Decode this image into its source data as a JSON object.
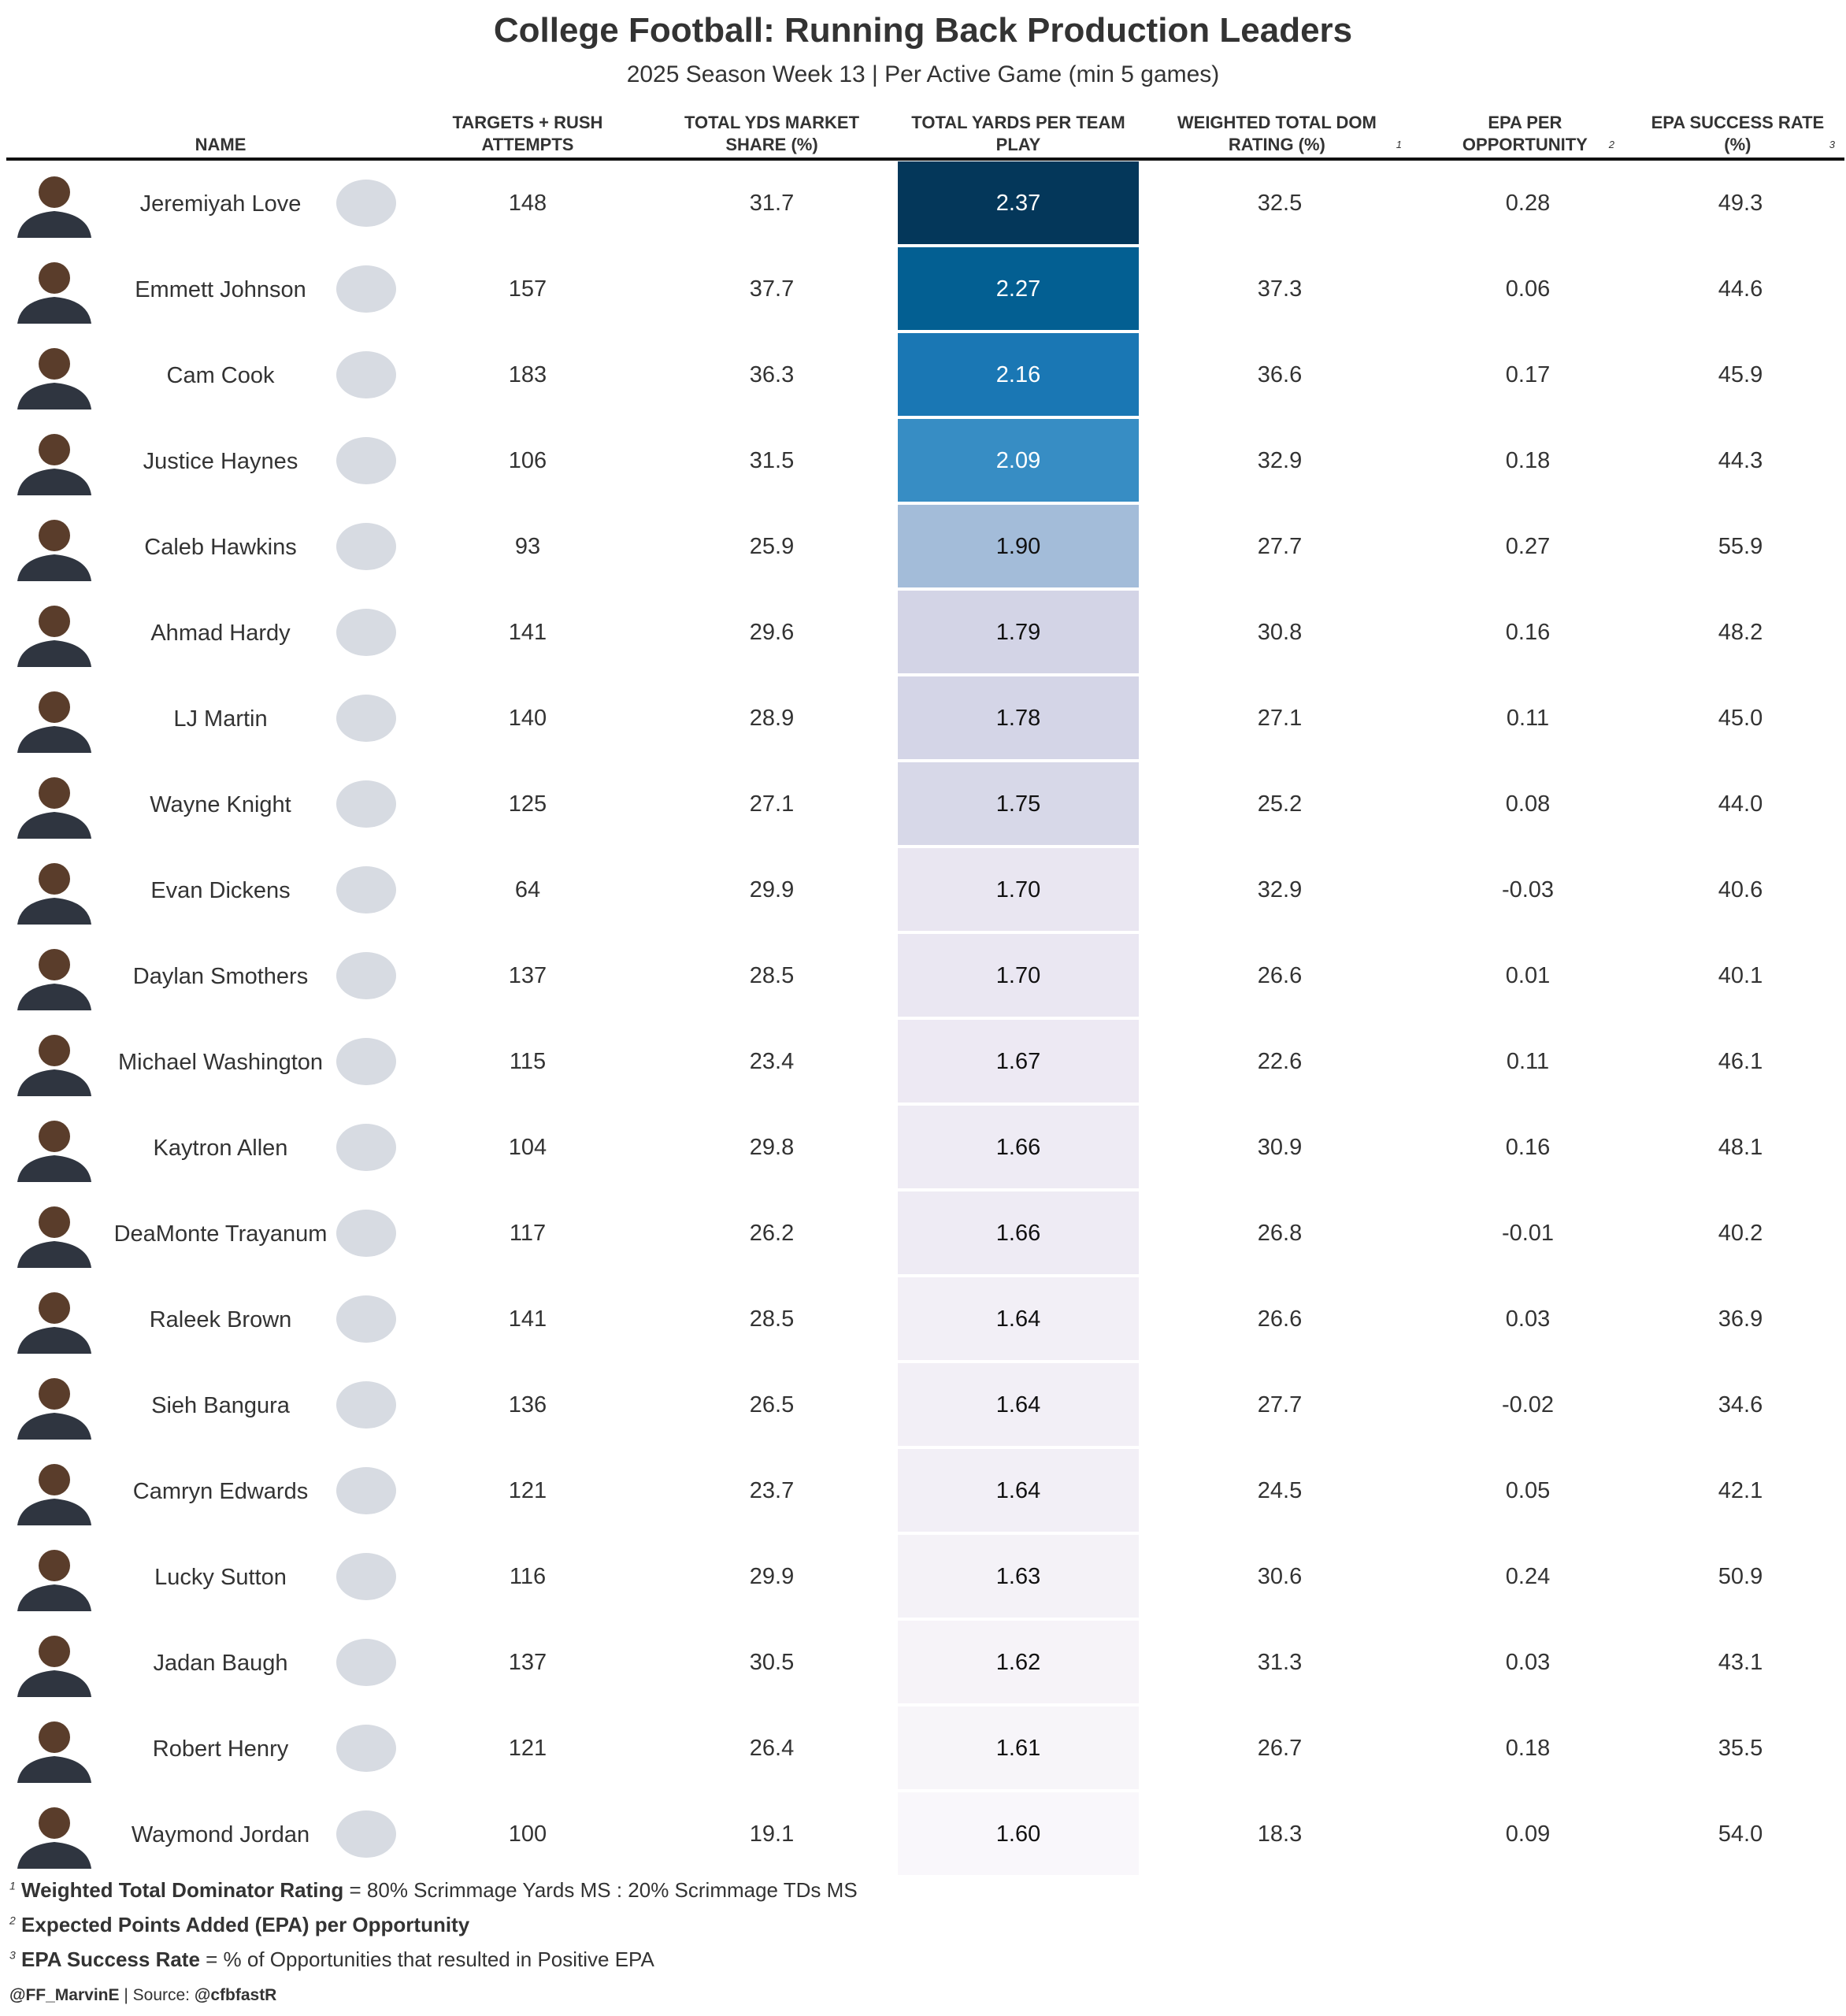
{
  "chart_data": {
    "type": "table",
    "title": "College Football: Running Back Production Leaders",
    "subtitle": "2025 Season Week 13 | Per Active Game (min 5 games)",
    "columns": [
      {
        "key": "name",
        "label": "NAME"
      },
      {
        "key": "attempts",
        "label": "TARGETS + RUSH ATTEMPTS"
      },
      {
        "key": "ms",
        "label": "TOTAL YDS MARKET SHARE (%)"
      },
      {
        "key": "ypp",
        "label": "TOTAL YARDS PER TEAM PLAY"
      },
      {
        "key": "dom",
        "label": "WEIGHTED TOTAL DOM RATING (%)",
        "note": "1"
      },
      {
        "key": "epa",
        "label": "EPA PER OPPORTUNITY",
        "note": "2"
      },
      {
        "key": "sr",
        "label": "EPA SUCCESS RATE (%)",
        "note": "3"
      }
    ],
    "rows": [
      {
        "name": "Jeremiyah Love",
        "logo": "notre-dame-logo",
        "attempts": "148",
        "ms": "31.7",
        "ypp": "2.37",
        "dom": "32.5",
        "epa": "0.28",
        "sr": "49.3"
      },
      {
        "name": "Emmett Johnson",
        "logo": "nebraska-logo",
        "attempts": "157",
        "ms": "37.7",
        "ypp": "2.27",
        "dom": "37.3",
        "epa": "0.06",
        "sr": "44.6"
      },
      {
        "name": "Cam Cook",
        "logo": "jackson-state-logo",
        "attempts": "183",
        "ms": "36.3",
        "ypp": "2.16",
        "dom": "36.6",
        "epa": "0.17",
        "sr": "45.9"
      },
      {
        "name": "Justice Haynes",
        "logo": "michigan-logo",
        "attempts": "106",
        "ms": "31.5",
        "ypp": "2.09",
        "dom": "32.9",
        "epa": "0.18",
        "sr": "44.3"
      },
      {
        "name": "Caleb Hawkins",
        "logo": "north-texas-logo",
        "attempts": "93",
        "ms": "25.9",
        "ypp": "1.90",
        "dom": "27.7",
        "epa": "0.27",
        "sr": "55.9"
      },
      {
        "name": "Ahmad Hardy",
        "logo": "missouri-logo",
        "attempts": "141",
        "ms": "29.6",
        "ypp": "1.79",
        "dom": "30.8",
        "epa": "0.16",
        "sr": "48.2"
      },
      {
        "name": "LJ Martin",
        "logo": "byu-logo",
        "attempts": "140",
        "ms": "28.9",
        "ypp": "1.78",
        "dom": "27.1",
        "epa": "0.11",
        "sr": "45.0"
      },
      {
        "name": "Wayne Knight",
        "logo": "jmu-logo",
        "attempts": "125",
        "ms": "27.1",
        "ypp": "1.75",
        "dom": "25.2",
        "epa": "0.08",
        "sr": "44.0"
      },
      {
        "name": "Evan Dickens",
        "logo": "liberty-logo",
        "attempts": "64",
        "ms": "29.9",
        "ypp": "1.70",
        "dom": "32.9",
        "epa": "-0.03",
        "sr": "40.6"
      },
      {
        "name": "Daylan Smothers",
        "logo": "nc-state-logo",
        "attempts": "137",
        "ms": "28.5",
        "ypp": "1.70",
        "dom": "26.6",
        "epa": "0.01",
        "sr": "40.1"
      },
      {
        "name": "Michael Washington",
        "logo": "arkansas-logo",
        "attempts": "115",
        "ms": "23.4",
        "ypp": "1.67",
        "dom": "22.6",
        "epa": "0.11",
        "sr": "46.1"
      },
      {
        "name": "Kaytron Allen",
        "logo": "penn-state-logo",
        "attempts": "104",
        "ms": "29.8",
        "ypp": "1.66",
        "dom": "30.9",
        "epa": "0.16",
        "sr": "48.1"
      },
      {
        "name": "DeaMonte Trayanum",
        "logo": "toledo-logo",
        "attempts": "117",
        "ms": "26.2",
        "ypp": "1.66",
        "dom": "26.8",
        "epa": "-0.01",
        "sr": "40.2"
      },
      {
        "name": "Raleek Brown",
        "logo": "arizona-state-logo",
        "attempts": "141",
        "ms": "28.5",
        "ypp": "1.64",
        "dom": "26.6",
        "epa": "0.03",
        "sr": "36.9"
      },
      {
        "name": "Sieh Bangura",
        "logo": "ohio-logo",
        "attempts": "136",
        "ms": "26.5",
        "ypp": "1.64",
        "dom": "27.7",
        "epa": "-0.02",
        "sr": "34.6"
      },
      {
        "name": "Camryn Edwards",
        "logo": "uconn-logo",
        "attempts": "121",
        "ms": "23.7",
        "ypp": "1.64",
        "dom": "24.5",
        "epa": "0.05",
        "sr": "42.1"
      },
      {
        "name": "Lucky Sutton",
        "logo": "san-diego-state-logo",
        "attempts": "116",
        "ms": "29.9",
        "ypp": "1.63",
        "dom": "30.6",
        "epa": "0.24",
        "sr": "50.9"
      },
      {
        "name": "Jadan Baugh",
        "logo": "florida-logo",
        "attempts": "137",
        "ms": "30.5",
        "ypp": "1.62",
        "dom": "31.3",
        "epa": "0.03",
        "sr": "43.1"
      },
      {
        "name": "Robert Henry",
        "logo": "utsa-logo",
        "attempts": "121",
        "ms": "26.4",
        "ypp": "1.61",
        "dom": "26.7",
        "epa": "0.18",
        "sr": "35.5"
      },
      {
        "name": "Waymond Jordan",
        "logo": "usc-logo",
        "attempts": "100",
        "ms": "19.1",
        "ypp": "1.60",
        "dom": "18.3",
        "epa": "0.09",
        "sr": "54.0"
      }
    ],
    "highlight_colors": [
      "#04375a",
      "#035f92",
      "#1a77b4",
      "#378dc4",
      "#a3bcd9",
      "#d3d4e6",
      "#d4d5e7",
      "#d7d8e8",
      "#e9e6f1",
      "#eae7f2",
      "#ede9f3",
      "#eeebf4",
      "#eeebf4",
      "#f2eff6",
      "#f2eff6",
      "#f2eff6",
      "#f4f2f7",
      "#f6f3f8",
      "#f7f5f9",
      "#f9f7fb"
    ],
    "notes": [
      {
        "num": "1",
        "bold": "Weighted Total Dominator Rating",
        "rest": " = 80% Scrimmage Yards MS : 20% Scrimmage TDs MS"
      },
      {
        "num": "2",
        "bold": "Expected Points Added (EPA) per Opportunity",
        "rest": ""
      },
      {
        "num": "3",
        "bold": "EPA Success Rate",
        "rest": " = % of Opportunities that resulted in Positive EPA"
      }
    ],
    "credit_handle": "@FF_MarvinE",
    "credit_source": " | Source: ",
    "credit_source_handle": "@cfbfastR"
  }
}
